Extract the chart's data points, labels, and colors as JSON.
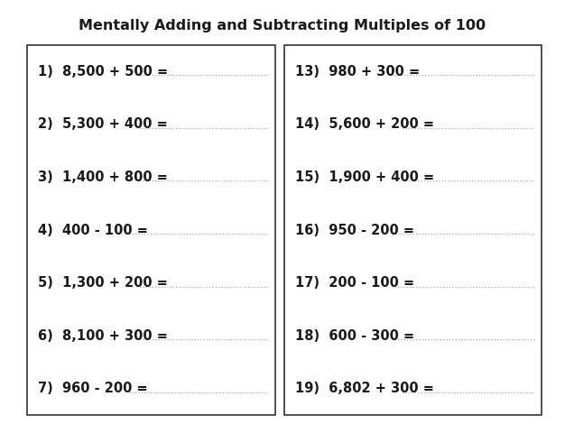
{
  "title": "Mentally Adding and Subtracting Multiples of 100",
  "left_problems": [
    "1)  8,500 + 500 =",
    "2)  5,300 + 400 =",
    "3)  1,400 + 800 =",
    "4)  400 - 100 =",
    "5)  1,300 + 200 =",
    "6)  8,100 + 300 =",
    "7)  960 - 200 ="
  ],
  "right_problems": [
    "13)  980 + 300 =",
    "14)  5,600 + 200 =",
    "15)  1,900 + 400 =",
    "16)  950 - 200 =",
    "17)  200 - 100 =",
    "18)  600 - 300 =",
    "19)  6,802 + 300 ="
  ],
  "bg_color": "#ffffff",
  "text_color": "#1a1a1a",
  "border_color": "#333333",
  "line_color": "#999999",
  "title_fontsize": 11.5,
  "problem_fontsize": 10.5,
  "fig_width": 6.26,
  "fig_height": 4.7
}
